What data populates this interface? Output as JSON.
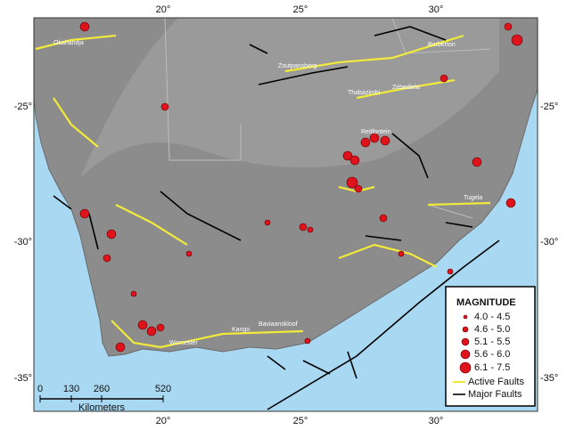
{
  "map": {
    "lon_labels": [
      "20°",
      "25°",
      "30°"
    ],
    "lat_labels": [
      "-25°",
      "-30°",
      "-35°"
    ],
    "place_labels": [
      "Okahandja",
      "Zoutpansberg",
      "Thabazimbi",
      "Zebediela",
      "Barberton",
      "Reitfontein",
      "Tugela",
      "Kango",
      "Worcester",
      "Baviaanskloof"
    ],
    "legend": {
      "title": "MAGNITUDE",
      "magnitude_classes": [
        "4.0 - 4.5",
        "4.6 - 5.0",
        "5.1 - 5.5",
        "5.6 - 6.0",
        "6.1 - 7.5"
      ],
      "faults": [
        "Active Faults",
        "Major Faults"
      ]
    },
    "scale_bar": {
      "ticks": [
        "0",
        "130",
        "260",
        "520"
      ],
      "unit": "Kilometers"
    }
  }
}
